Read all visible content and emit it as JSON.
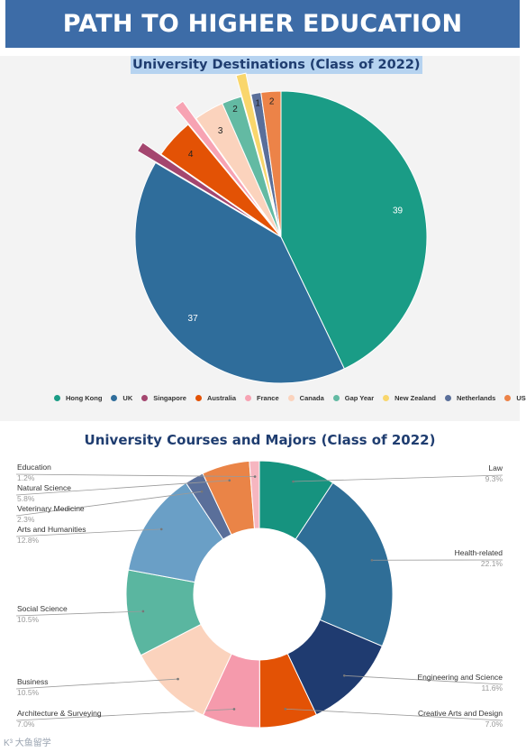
{
  "header": {
    "title": "PATH TO HIGHER EDUCATION"
  },
  "watermark": "K³ 大鱼留学",
  "chart_data": [
    {
      "type": "pie",
      "title": "University Destinations (Class of 2022)",
      "categories": [
        "Hong Kong",
        "UK",
        "Singapore",
        "Australia",
        "France",
        "Canada",
        "Gap Year",
        "New Zealand",
        "Netherlands",
        "USA"
      ],
      "values": [
        39,
        37,
        1,
        4,
        1,
        3,
        2,
        1,
        1,
        2
      ],
      "exploded": [
        false,
        false,
        true,
        false,
        true,
        false,
        false,
        true,
        false,
        false
      ],
      "colors": [
        "#1a9c86",
        "#2f6d9b",
        "#a4466f",
        "#e35205",
        "#f7a3b3",
        "#fbd3bd",
        "#63baa3",
        "#f9d66c",
        "#5a6f9a",
        "#ec8348"
      ],
      "legend_position": "bottom"
    },
    {
      "type": "pie",
      "subtype": "donut",
      "title": "University Courses and Majors (Class of 2022)",
      "categories": [
        "Law",
        "Health-related",
        "Engineering and Science",
        "Creative Arts and Design",
        "Architecture & Surveying",
        "Business",
        "Social Science",
        "Arts and Humanities",
        "Veterinary Medicine",
        "Natural Science",
        "Education"
      ],
      "values": [
        9.3,
        22.1,
        11.6,
        7.0,
        7.0,
        10.5,
        10.5,
        12.8,
        2.3,
        5.8,
        1.2
      ],
      "value_labels": [
        "9.3%",
        "22.1%",
        "11.6%",
        "7.0%",
        "7.0%",
        "10.5%",
        "10.5%",
        "12.8%",
        "2.3%",
        "5.8%",
        "1.2%"
      ],
      "colors": [
        "#16937f",
        "#2f6e97",
        "#1f3b70",
        "#e35205",
        "#f59aac",
        "#fbd3bd",
        "#5ab6a0",
        "#6a9fc6",
        "#5a6f9a",
        "#ea8447",
        "#f6b6c0"
      ]
    }
  ]
}
